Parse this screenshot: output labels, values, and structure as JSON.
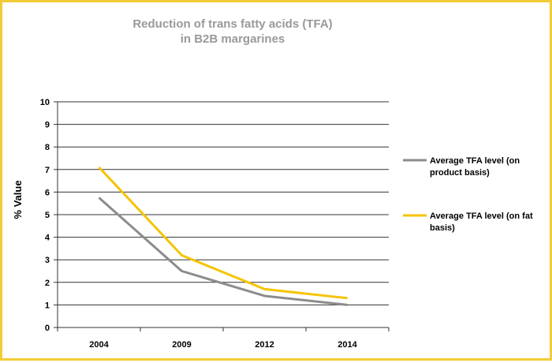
{
  "chart_data": {
    "type": "line",
    "title_lines": [
      "Reduction of trans fatty acids (TFA)",
      "in B2B margarines"
    ],
    "xlabel": "",
    "ylabel": "% Value",
    "categories": [
      "2004",
      "2009",
      "2012",
      "2014"
    ],
    "ylim": [
      0,
      10
    ],
    "yticks": [
      "0",
      "1",
      "2",
      "3",
      "4",
      "5",
      "6",
      "7",
      "8",
      "9",
      "10"
    ],
    "grid": true,
    "legend_position": "right",
    "series": [
      {
        "name_lines": [
          "Average TFA level (on",
          "product basis)"
        ],
        "color": "#8c8c8c",
        "values": [
          5.75,
          2.5,
          1.4,
          1.0
        ]
      },
      {
        "name_lines": [
          "Average TFA level (on fat",
          "basis)"
        ],
        "color": "#f5c400",
        "values": [
          7.1,
          3.2,
          1.7,
          1.3
        ]
      }
    ]
  },
  "colors": {
    "frame_border": "#f2cc36",
    "title": "#999999",
    "gridline": "#333333"
  }
}
